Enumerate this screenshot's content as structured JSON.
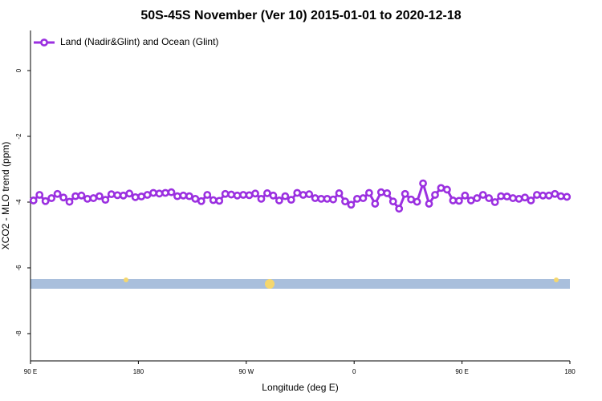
{
  "chart_data": {
    "type": "line",
    "title": "50S-45S November (Ver 10)   2015-01-01 to 2020-12-18",
    "x_label": "Longitude (deg E)",
    "y_label": "XCO2 - MLO trend (ppm)",
    "xlim": [
      90,
      540
    ],
    "xticks": [
      {
        "value": 90,
        "label": "90 E"
      },
      {
        "value": 180,
        "label": "180"
      },
      {
        "value": 270,
        "label": "90 W"
      },
      {
        "value": 360,
        "label": "0"
      },
      {
        "value": 450,
        "label": "90 E"
      },
      {
        "value": 540,
        "label": "180"
      }
    ],
    "ylim": [
      -8.83,
      1.22
    ],
    "yticks": [
      0,
      -2,
      -4,
      -6,
      -8
    ],
    "legend": "top-left",
    "x": [
      92.5,
      97.5,
      102.5,
      107.5,
      112.5,
      117.5,
      122.5,
      127.5,
      132.5,
      137.5,
      142.5,
      147.5,
      152.5,
      157.5,
      162.5,
      167.5,
      172.5,
      177.5,
      182.5,
      187.5,
      192.5,
      197.5,
      202.5,
      207.5,
      212.5,
      217.5,
      222.5,
      227.5,
      232.5,
      237.5,
      242.5,
      247.5,
      252.5,
      257.5,
      262.5,
      267.5,
      272.5,
      277.5,
      282.5,
      287.5,
      292.5,
      297.5,
      302.5,
      307.5,
      312.5,
      317.5,
      322.5,
      327.5,
      332.5,
      337.5,
      342.5,
      347.5,
      352.5,
      357.5,
      362.5,
      367.5,
      372.5,
      377.5,
      382.5,
      387.5,
      392.5,
      397.5,
      402.5,
      407.5,
      412.5,
      417.5,
      422.5,
      427.5,
      432.5,
      437.5,
      442.5,
      447.5,
      452.5,
      457.5,
      462.5,
      467.5,
      472.5,
      477.5,
      482.5,
      487.5,
      492.5,
      497.5,
      502.5,
      507.5,
      512.5,
      517.5,
      522.5,
      527.5,
      532.5,
      537.5
    ],
    "series": [
      {
        "name": "Land (Nadir&Glint) and Ocean (Glint)",
        "color": "#9b30e0",
        "values": [
          -3.95,
          -3.78,
          -3.97,
          -3.88,
          -3.75,
          -3.86,
          -3.99,
          -3.82,
          -3.8,
          -3.9,
          -3.88,
          -3.82,
          -3.93,
          -3.76,
          -3.79,
          -3.8,
          -3.74,
          -3.85,
          -3.83,
          -3.78,
          -3.72,
          -3.74,
          -3.72,
          -3.7,
          -3.82,
          -3.8,
          -3.82,
          -3.9,
          -3.97,
          -3.78,
          -3.94,
          -3.96,
          -3.75,
          -3.77,
          -3.8,
          -3.78,
          -3.79,
          -3.74,
          -3.9,
          -3.73,
          -3.8,
          -3.95,
          -3.82,
          -3.93,
          -3.72,
          -3.78,
          -3.76,
          -3.88,
          -3.9,
          -3.9,
          -3.92,
          -3.73,
          -3.98,
          -4.08,
          -3.9,
          -3.88,
          -3.72,
          -4.05,
          -3.7,
          -3.73,
          -3.98,
          -4.2,
          -3.75,
          -3.92,
          -3.99,
          -3.43,
          -4.05,
          -3.78,
          -3.57,
          -3.62,
          -3.95,
          -3.96,
          -3.8,
          -3.95,
          -3.88,
          -3.78,
          -3.88,
          -4.0,
          -3.82,
          -3.83,
          -3.88,
          -3.9,
          -3.86,
          -3.95,
          -3.78,
          -3.8,
          -3.8,
          -3.75,
          -3.82,
          -3.84
        ]
      }
    ]
  }
}
